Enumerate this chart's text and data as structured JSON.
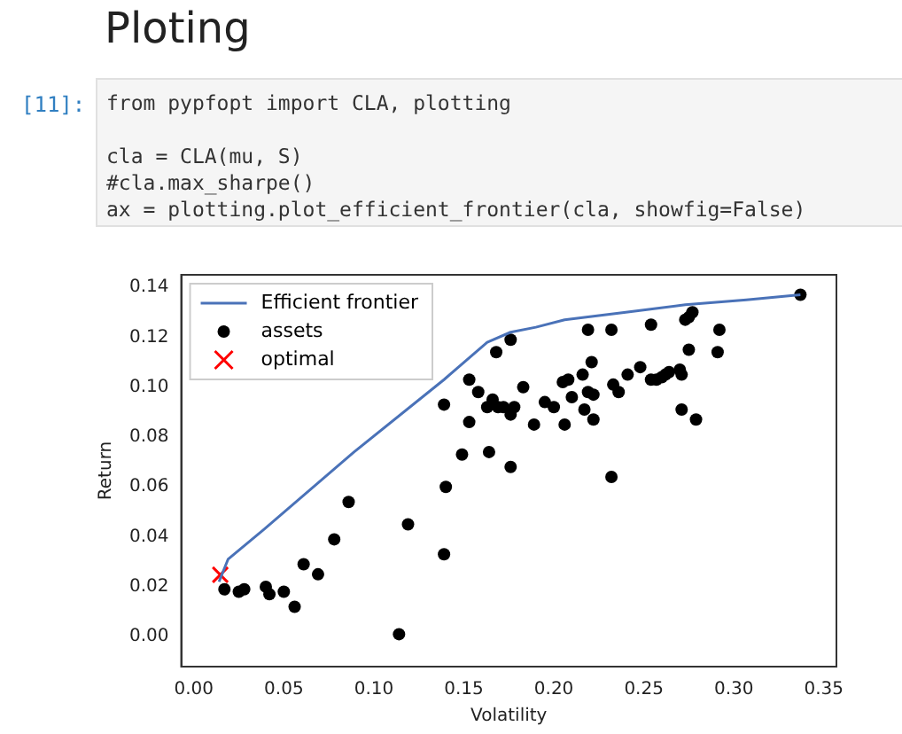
{
  "chart_data": {
    "type": "scatter",
    "title": "Ploting",
    "annotations": [
      "[11]:",
      "from pypfopt import CLA, plotting",
      "cla = CLA(mu, S)",
      "#cla.max_sharpe()",
      "ax = plotting.plot_efficient_frontier(cla, showfig=False)"
    ],
    "xlabel": "Volatility",
    "ylabel": "Return",
    "xlim": [
      -0.007,
      0.357
    ],
    "ylim": [
      -0.012,
      0.145
    ],
    "xticks": [
      {
        "value": 0,
        "label": "0.00"
      },
      {
        "value": 0.05,
        "label": "0.05"
      },
      {
        "value": 0.1,
        "label": "0.10"
      },
      {
        "value": 0.15,
        "label": "0.15"
      },
      {
        "value": 0.2,
        "label": "0.20"
      },
      {
        "value": 0.25,
        "label": "0.25"
      },
      {
        "value": 0.3,
        "label": "0.30"
      },
      {
        "value": 0.35,
        "label": "0.35"
      }
    ],
    "yticks": [
      {
        "value": 0,
        "label": "0.00"
      },
      {
        "value": 0.02,
        "label": "0.02"
      },
      {
        "value": 0.04,
        "label": "0.04"
      },
      {
        "value": 0.06,
        "label": "0.06"
      },
      {
        "value": 0.08,
        "label": "0.08"
      },
      {
        "value": 0.1,
        "label": "0.10"
      },
      {
        "value": 0.12,
        "label": "0.12"
      },
      {
        "value": 0.14,
        "label": "0.14"
      }
    ],
    "grid": false,
    "legend": "top left",
    "series": [
      {
        "name": "Efficient frontier",
        "type": "line",
        "color": "#4a72b8",
        "marker": "none",
        "line_style": "solid",
        "x": [
          0.014,
          0.019,
          0.039,
          0.089,
          0.139,
          0.163,
          0.176,
          0.19,
          0.206,
          0.24,
          0.273,
          0.307,
          0.337
        ],
        "values": [
          0.022,
          0.031,
          0.043,
          0.074,
          0.103,
          0.118,
          0.122,
          0.124,
          0.127,
          0.13,
          0.133,
          0.135,
          0.137
        ]
      },
      {
        "name": "assets",
        "color": "#000000",
        "marker": "circle",
        "x": [
          0.017,
          0.025,
          0.028,
          0.04,
          0.042,
          0.05,
          0.056,
          0.061,
          0.069,
          0.078,
          0.086,
          0.114,
          0.119,
          0.139,
          0.14,
          0.139,
          0.149,
          0.153,
          0.153,
          0.158,
          0.164,
          0.176,
          0.163,
          0.166,
          0.169,
          0.172,
          0.176,
          0.178,
          0.168,
          0.176,
          0.183,
          0.189,
          0.195,
          0.2,
          0.206,
          0.205,
          0.208,
          0.21,
          0.216,
          0.219,
          0.221,
          0.219,
          0.222,
          0.217,
          0.222,
          0.232,
          0.233,
          0.236,
          0.232,
          0.241,
          0.248,
          0.254,
          0.254,
          0.257,
          0.26,
          0.262,
          0.264,
          0.27,
          0.271,
          0.271,
          0.279,
          0.273,
          0.275,
          0.277,
          0.275,
          0.292,
          0.291,
          0.337
        ],
        "values": [
          0.019,
          0.018,
          0.019,
          0.02,
          0.017,
          0.018,
          0.012,
          0.029,
          0.025,
          0.039,
          0.054,
          0.001,
          0.045,
          0.033,
          0.06,
          0.093,
          0.073,
          0.103,
          0.086,
          0.098,
          0.074,
          0.068,
          0.092,
          0.095,
          0.092,
          0.092,
          0.089,
          0.092,
          0.114,
          0.119,
          0.1,
          0.085,
          0.094,
          0.092,
          0.085,
          0.102,
          0.103,
          0.096,
          0.105,
          0.123,
          0.11,
          0.098,
          0.097,
          0.091,
          0.087,
          0.123,
          0.101,
          0.098,
          0.064,
          0.105,
          0.108,
          0.125,
          0.103,
          0.103,
          0.104,
          0.105,
          0.106,
          0.107,
          0.105,
          0.091,
          0.087,
          0.127,
          0.128,
          0.13,
          0.115,
          0.123,
          0.114,
          0.137
        ]
      },
      {
        "name": "optimal",
        "color": "#ff0000",
        "marker": "cross",
        "x": [
          0.0147
        ],
        "values": [
          0.0248
        ]
      }
    ]
  }
}
